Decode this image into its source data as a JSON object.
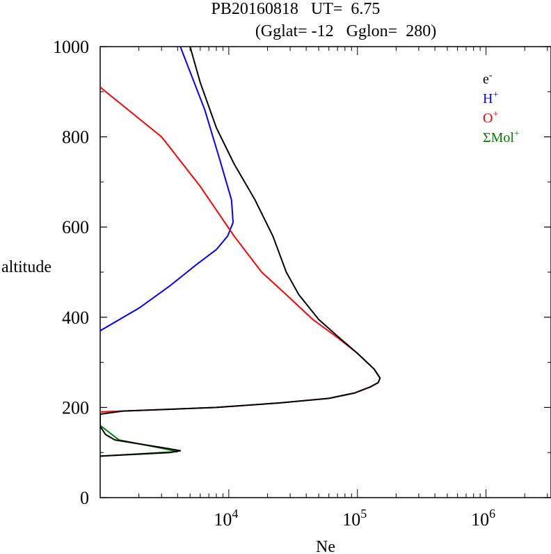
{
  "chart_data": {
    "type": "line",
    "title_line1": "PB20160818   UT=  6.75",
    "title_line2": "(Gglat= -12   Gglon=  280)",
    "xlabel": "Ne",
    "ylabel": "altitude",
    "xscale": "log",
    "xlim": [
      1000,
      3200000
    ],
    "ylim": [
      0,
      1000
    ],
    "yticks": [
      {
        "value": 0,
        "label": "0"
      },
      {
        "value": 200,
        "label": "200"
      },
      {
        "value": 400,
        "label": "400"
      },
      {
        "value": 600,
        "label": "600"
      },
      {
        "value": 800,
        "label": "800"
      },
      {
        "value": 1000,
        "label": "1000"
      }
    ],
    "xticks": [
      {
        "value": 10000,
        "base": "10",
        "exp": "4"
      },
      {
        "value": 100000,
        "base": "10",
        "exp": "5"
      },
      {
        "value": 1000000,
        "base": "10",
        "exp": "6"
      }
    ],
    "legend_position": "top-right",
    "series": [
      {
        "name": "H+",
        "label_base": "H",
        "label_sup": "+",
        "color": "#0000ff",
        "points": [
          [
            1000,
            370
          ],
          [
            2000,
            420
          ],
          [
            3500,
            470
          ],
          [
            5500,
            515
          ],
          [
            8000,
            550
          ],
          [
            9800,
            580
          ],
          [
            10800,
            610
          ],
          [
            10500,
            660
          ],
          [
            8500,
            750
          ],
          [
            6500,
            860
          ],
          [
            4200,
            1000
          ]
        ]
      },
      {
        "name": "O+",
        "label_base": "O",
        "label_sup": "+",
        "color": "#ff0000",
        "points": [
          [
            1000,
            190
          ],
          [
            1500,
            192
          ],
          [
            8000,
            200
          ],
          [
            25000,
            210
          ],
          [
            60000,
            220
          ],
          [
            95000,
            232
          ],
          [
            125000,
            245
          ],
          [
            145000,
            255
          ],
          [
            150000,
            265
          ],
          [
            135000,
            285
          ],
          [
            100000,
            320
          ],
          [
            70000,
            355
          ],
          [
            45000,
            395
          ],
          [
            28000,
            450
          ],
          [
            18000,
            500
          ],
          [
            11000,
            580
          ],
          [
            6000,
            690
          ],
          [
            3000,
            800
          ],
          [
            1000,
            910
          ]
        ]
      },
      {
        "name": "ΣMol+",
        "label_base": "ΣMol",
        "label_sup": "+",
        "color": "#008000",
        "points": [
          [
            1000,
            92
          ],
          [
            4000,
            102
          ],
          [
            3200,
            108
          ],
          [
            1400,
            128
          ],
          [
            1000,
            160
          ]
        ]
      },
      {
        "name": "e-",
        "label_base": "e",
        "label_sup": "-",
        "color": "#000000",
        "points": [
          [
            1000,
            92
          ],
          [
            3500,
            100
          ],
          [
            4200,
            104
          ],
          [
            3500,
            108
          ],
          [
            1300,
            128
          ],
          [
            1100,
            140
          ],
          [
            1000,
            158
          ],
          [
            1000,
            178
          ],
          [
            1000,
            185
          ],
          [
            1500,
            192
          ],
          [
            8000,
            200
          ],
          [
            25000,
            210
          ],
          [
            60000,
            220
          ],
          [
            95000,
            232
          ],
          [
            125000,
            245
          ],
          [
            145000,
            255
          ],
          [
            150000,
            265
          ],
          [
            135000,
            285
          ],
          [
            100000,
            320
          ],
          [
            72000,
            355
          ],
          [
            50000,
            395
          ],
          [
            35000,
            450
          ],
          [
            28000,
            500
          ],
          [
            22000,
            580
          ],
          [
            16000,
            660
          ],
          [
            11000,
            740
          ],
          [
            8000,
            820
          ],
          [
            6000,
            920
          ],
          [
            5000,
            1000
          ]
        ]
      }
    ]
  }
}
